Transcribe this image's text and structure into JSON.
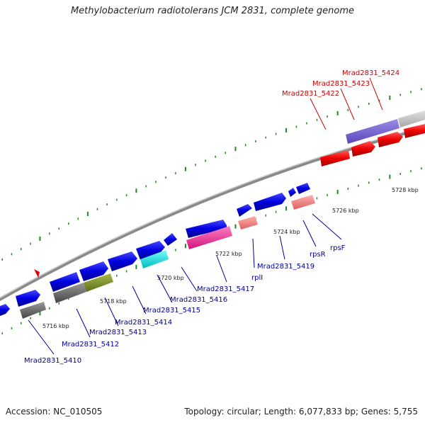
{
  "title": "Methylobacterium radiotolerans JCM 2831, complete genome",
  "footer": {
    "accession": "Accession: NC_010505",
    "summary": "Topology: circular; Length: 6,077,833 bp; Genes: 5,755"
  },
  "colors": {
    "forward": "#0000ee",
    "reverse": "#ee0000",
    "label_forward": "#000099",
    "label_reverse": "#cc0000",
    "tick": "#228822",
    "backbone": "#888888"
  },
  "scale_labels": [
    "5716 kbp",
    "5718 kbp",
    "5720 kbp",
    "5722 kbp",
    "5724 kbp",
    "5726 kbp",
    "5728 kbp"
  ],
  "gene_labels": {
    "reverse": [
      "Mrad2831_5422",
      "Mrad2831_5423",
      "Mrad2831_5424"
    ],
    "forward": [
      "Mrad2831_5410",
      "Mrad2831_5412",
      "Mrad2831_5413",
      "Mrad2831_5414",
      "Mrad2831_5415",
      "Mrad2831_5416",
      "Mrad2831_5417",
      "rplI",
      "Mrad2831_5419",
      "rpsR",
      "rpsF"
    ]
  }
}
